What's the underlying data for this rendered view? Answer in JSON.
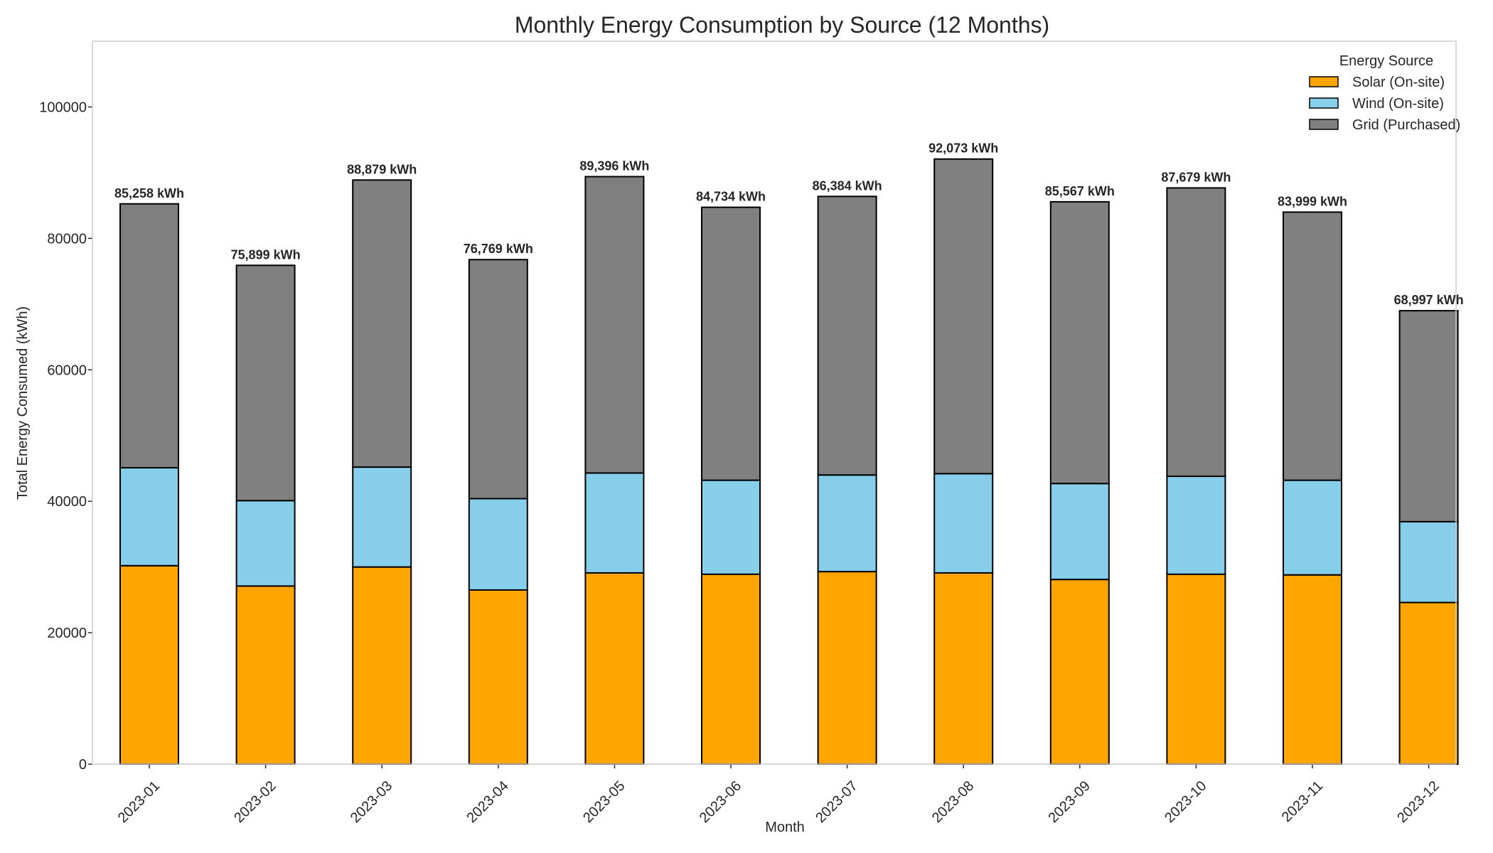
{
  "chart_data": {
    "type": "bar",
    "stacked": true,
    "title": "Monthly Energy Consumption by Source (12 Months)",
    "xlabel": "Month",
    "ylabel": "Total Energy Consumed (kWh)",
    "ylim": [
      0,
      110000
    ],
    "yticks": [
      0,
      20000,
      40000,
      60000,
      80000,
      100000
    ],
    "grid": false,
    "legend": {
      "title": "Energy Source",
      "placement": "top-right"
    },
    "categories": [
      "2023-01",
      "2023-02",
      "2023-03",
      "2023-04",
      "2023-05",
      "2023-06",
      "2023-07",
      "2023-08",
      "2023-09",
      "2023-10",
      "2023-11",
      "2023-12"
    ],
    "series": [
      {
        "name": "Solar (On-site)",
        "color": "#FFA500",
        "values": [
          30200,
          27100,
          30000,
          26500,
          29100,
          28900,
          29300,
          29100,
          28100,
          28900,
          28800,
          24600
        ]
      },
      {
        "name": "Wind (On-site)",
        "color": "#87CEEB",
        "values": [
          14900,
          13000,
          15200,
          13900,
          15200,
          14300,
          14700,
          15100,
          14600,
          14900,
          14400,
          12300
        ]
      },
      {
        "name": "Grid (Purchased)",
        "color": "#808080",
        "values": [
          40158,
          35799,
          43679,
          36369,
          45096,
          41534,
          42384,
          47873,
          42867,
          43879,
          40799,
          32097
        ]
      }
    ],
    "total_labels": [
      "85,258 kWh",
      "75,899 kWh",
      "88,879 kWh",
      "76,769 kWh",
      "89,396 kWh",
      "84,734 kWh",
      "86,384 kWh",
      "92,073 kWh",
      "85,567 kWh",
      "87,679 kWh",
      "83,999 kWh",
      "68,997 kWh"
    ]
  }
}
